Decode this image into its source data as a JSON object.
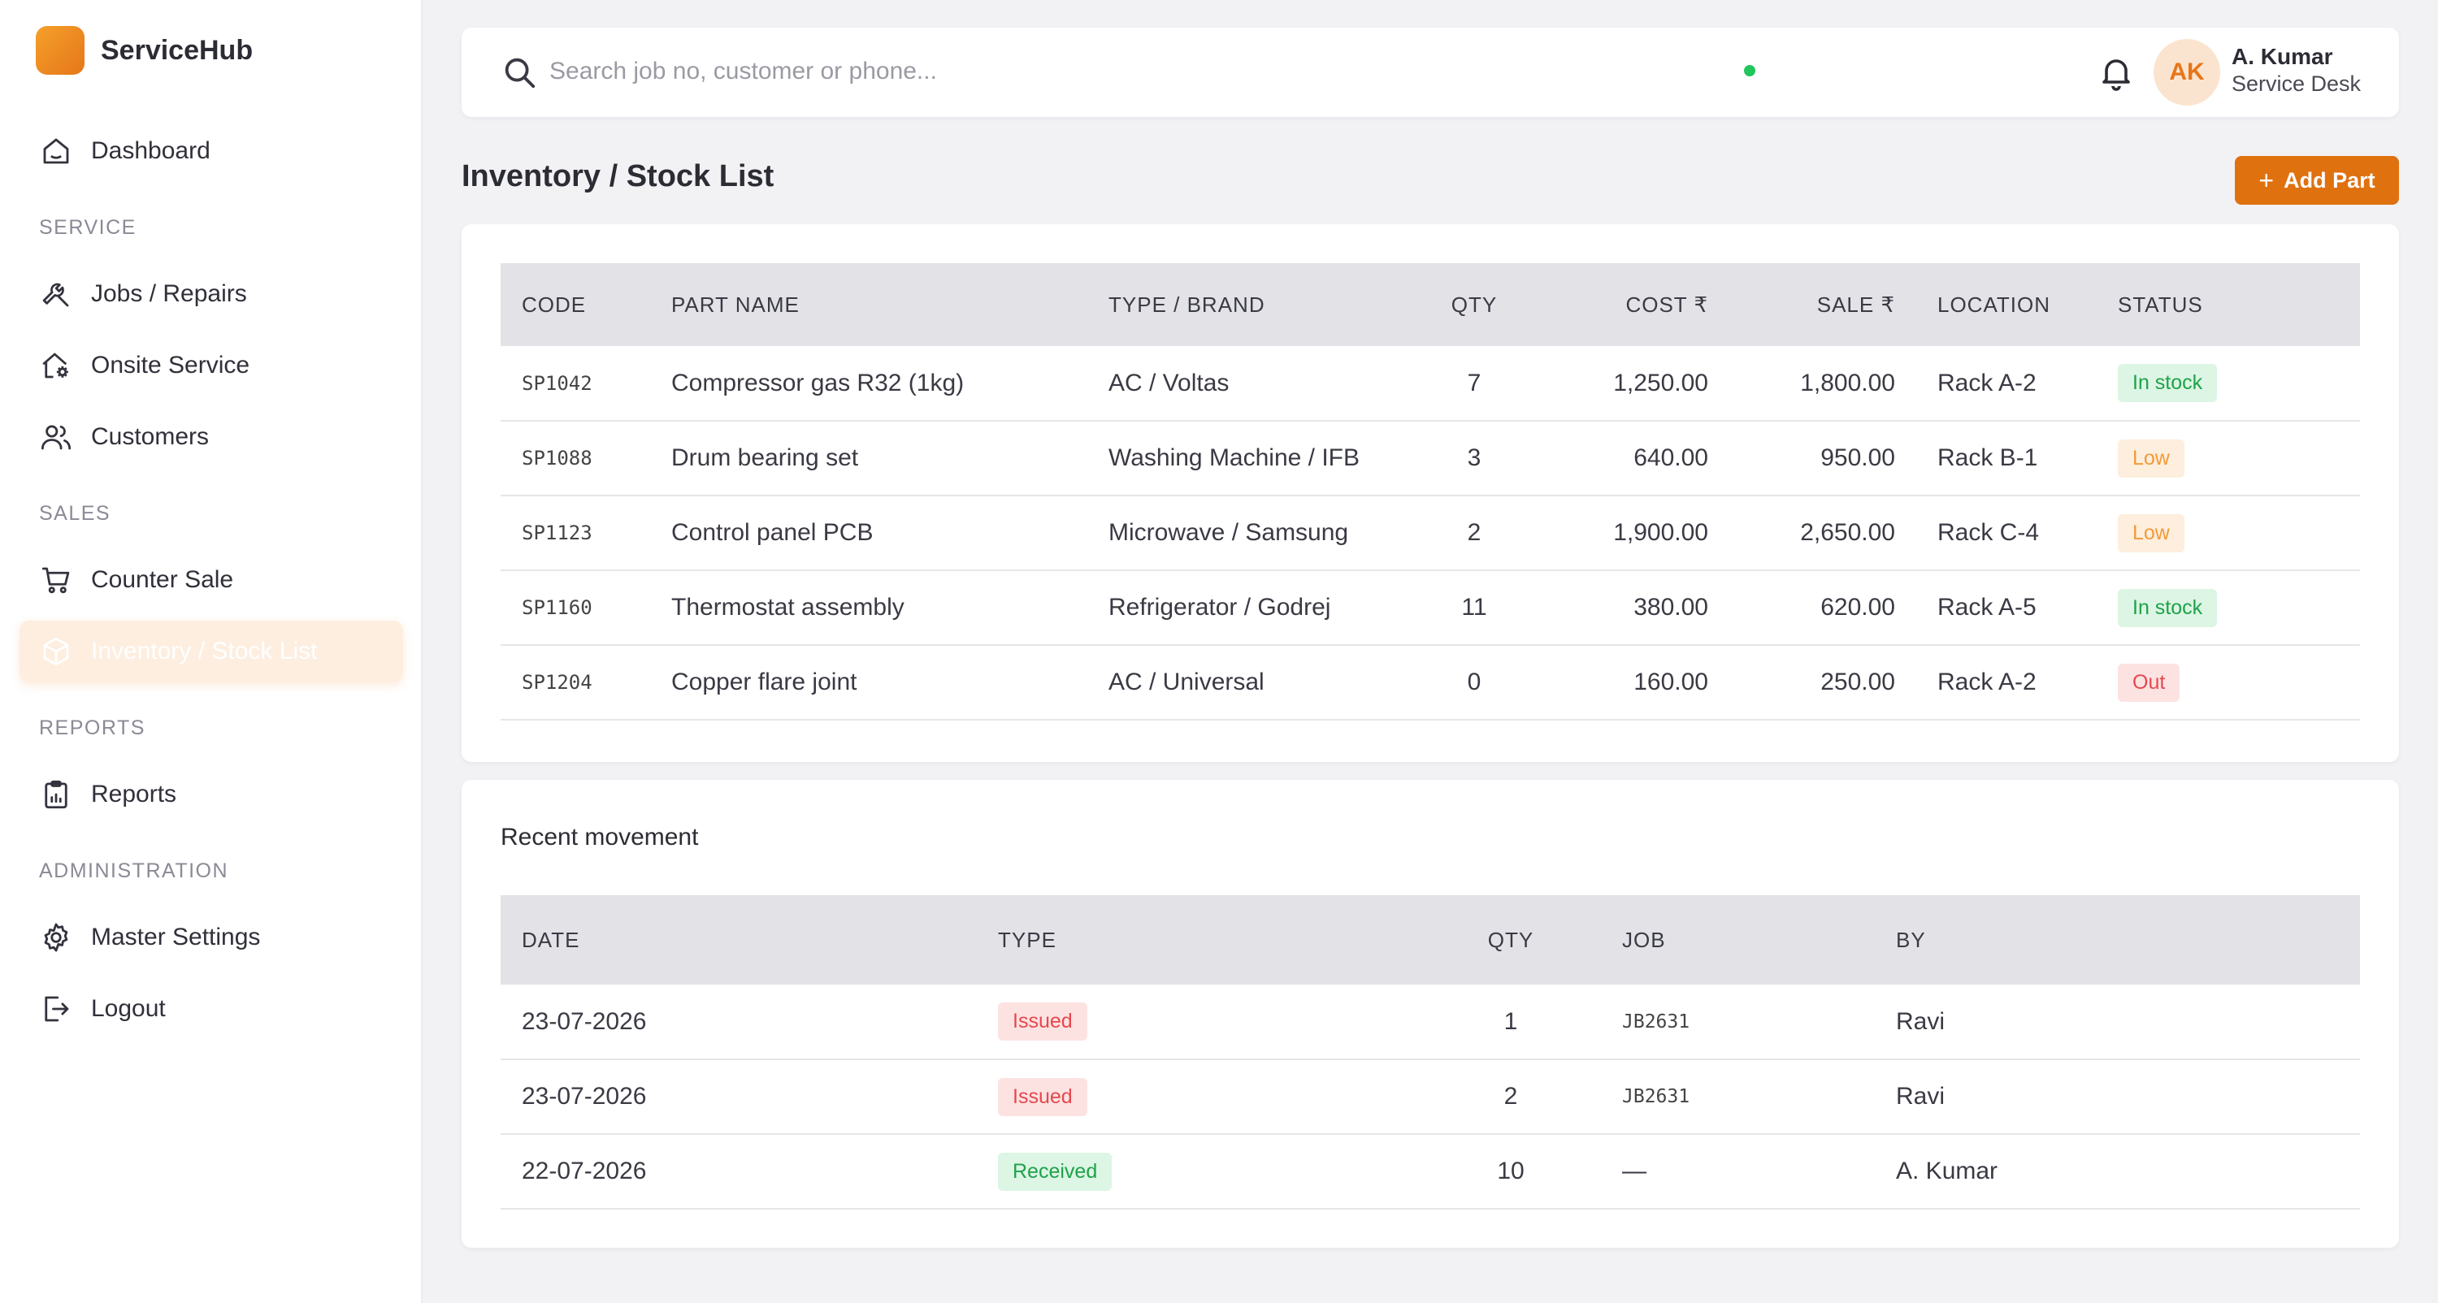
{
  "brand": {
    "name": "ServiceHub"
  },
  "sidebar": {
    "dashboard": "Dashboard",
    "sections": {
      "service": "SERVICE",
      "sales": "SALES",
      "reports": "REPORTS",
      "administration": "ADMINISTRATION"
    },
    "items": {
      "jobs": "Jobs / Repairs",
      "onsite": "Onsite Service",
      "customers": "Customers",
      "counter_sale": "Counter Sale",
      "inventory": "Inventory / Stock List",
      "reports": "Reports",
      "master_settings": "Master Settings",
      "logout": "Logout"
    },
    "active_item": "inventory",
    "accent_color": "#e6761a"
  },
  "topbar": {
    "search_placeholder": "Search job no, customer or phone...",
    "user": {
      "initials": "AK",
      "name": "A. Kumar",
      "role": "Service Desk",
      "online": true
    }
  },
  "page": {
    "title": "Inventory / Stock List",
    "add_button": {
      "icon": "+",
      "label": "Add Part"
    }
  },
  "inventory_table": {
    "headers": [
      "CODE",
      "PART NAME",
      "TYPE / BRAND",
      "QTY",
      "COST ₹",
      "SALE ₹",
      "LOCATION",
      "STATUS"
    ],
    "rows": [
      {
        "code": "SP1042",
        "name": "Compressor gas R32 (1kg)",
        "type": "AC / Voltas",
        "qty": "7",
        "cost": "1,250.00",
        "sale": "1,800.00",
        "location": "Rack A-2",
        "status": "In stock"
      },
      {
        "code": "SP1088",
        "name": "Drum bearing set",
        "type": "Washing Machine / IFB",
        "qty": "3",
        "cost": "640.00",
        "sale": "950.00",
        "location": "Rack B-1",
        "status": "Low"
      },
      {
        "code": "SP1123",
        "name": "Control panel PCB",
        "type": "Microwave / Samsung",
        "qty": "2",
        "cost": "1,900.00",
        "sale": "2,650.00",
        "location": "Rack C-4",
        "status": "Low"
      },
      {
        "code": "SP1160",
        "name": "Thermostat assembly",
        "type": "Refrigerator / Godrej",
        "qty": "11",
        "cost": "380.00",
        "sale": "620.00",
        "location": "Rack A-5",
        "status": "In stock"
      },
      {
        "code": "SP1204",
        "name": "Copper flare joint",
        "type": "AC / Universal",
        "qty": "0",
        "cost": "160.00",
        "sale": "250.00",
        "location": "Rack A-2",
        "status": "Out"
      }
    ]
  },
  "movement": {
    "title": "Recent movement",
    "headers": [
      "DATE",
      "TYPE",
      "QTY",
      "JOB",
      "BY"
    ],
    "rows": [
      {
        "date": "23-07-2026",
        "type": "Issued",
        "qty": "1",
        "job": "JB2631",
        "by": "Ravi"
      },
      {
        "date": "23-07-2026",
        "type": "Issued",
        "qty": "2",
        "job": "JB2631",
        "by": "Ravi"
      },
      {
        "date": "22-07-2026",
        "type": "Received",
        "qty": "10",
        "job": "—",
        "by": "A. Kumar"
      }
    ]
  },
  "status_colors": {
    "In stock": "#1fa24a",
    "Low": "#f29a38",
    "Out": "#e5484d",
    "Issued": "#e5484d",
    "Received": "#1fa24a"
  }
}
